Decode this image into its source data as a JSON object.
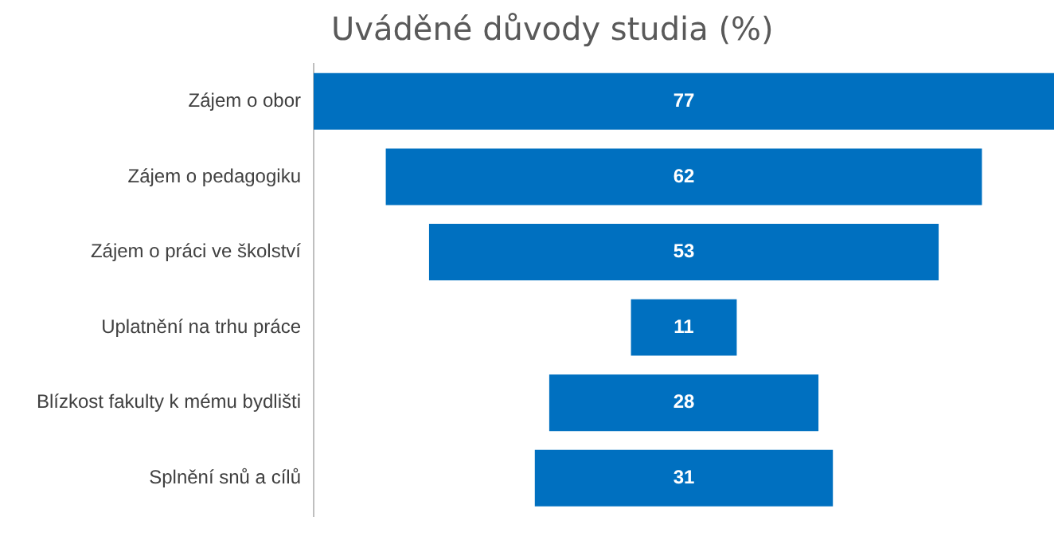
{
  "chart_data": {
    "type": "other",
    "title": "Uváděné důvody studia (%)",
    "categories": [
      "Zájem o obor",
      "Zájem o pedagogiku",
      "Zájem o práci ve školství",
      "Uplatnění na trhu práce",
      "Blízkost fakulty k mému bydlišti",
      "Splnění snů a cílů"
    ],
    "values": [
      77,
      62,
      53,
      11,
      28,
      31
    ],
    "color": "#0070c0",
    "data_labels": true
  }
}
